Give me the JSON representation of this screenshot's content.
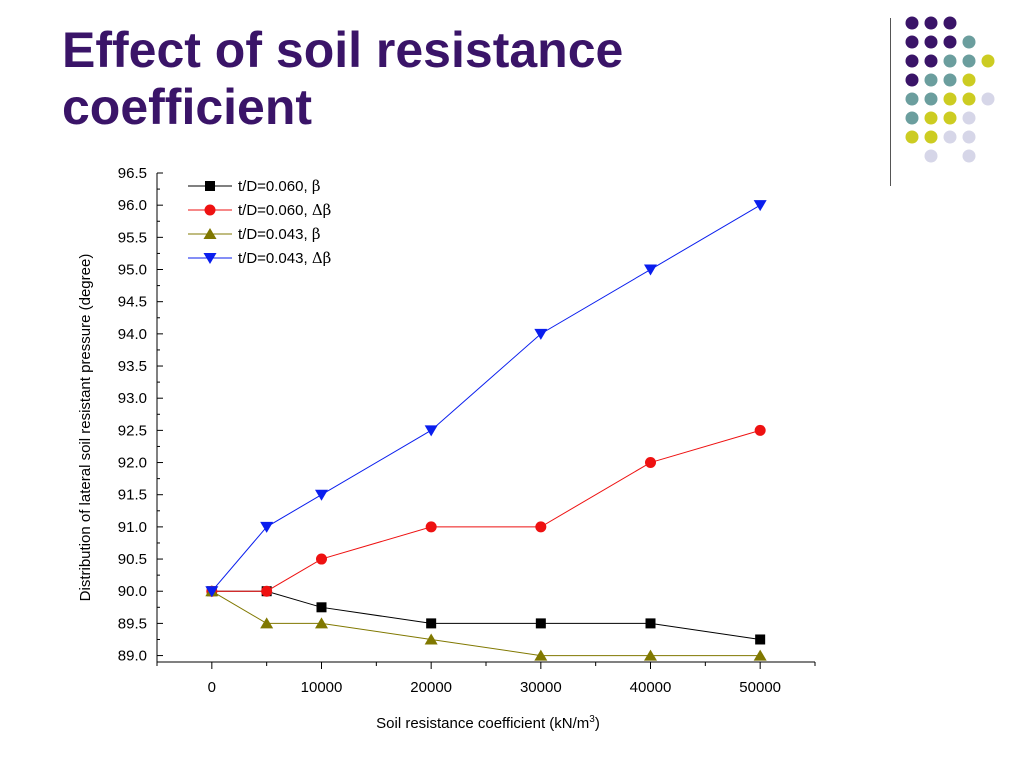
{
  "slide": {
    "title": "Effect of soil resistance coefficient"
  },
  "decoration": {
    "dot_colors": {
      "purple": "#3a1468",
      "teal": "#6b9e9e",
      "yellow": "#cccc22",
      "lavender": "#d6d6e8"
    },
    "dot_grid": [
      [
        "purple",
        "purple",
        "purple",
        null,
        null
      ],
      [
        "purple",
        "purple",
        "purple",
        "teal",
        null
      ],
      [
        "purple",
        "purple",
        "teal",
        "teal",
        "yellow"
      ],
      [
        "purple",
        "teal",
        "teal",
        "yellow",
        null
      ],
      [
        "teal",
        "teal",
        "yellow",
        "yellow",
        "lavender"
      ],
      [
        "teal",
        "yellow",
        "yellow",
        "lavender",
        null
      ],
      [
        "yellow",
        "yellow",
        "lavender",
        "lavender",
        null
      ],
      [
        null,
        "lavender",
        null,
        "lavender",
        null
      ]
    ]
  },
  "chart_data": {
    "type": "line",
    "xlabel": "Soil resistance coefficient (kN/m",
    "xlabel_sup": "3",
    "xlabel_end": ")",
    "ylabel": "Distribution of lateral soil resistant pressure (degree)",
    "xlim": [
      -5000,
      55000
    ],
    "ylim": [
      88.9,
      96.5
    ],
    "x_ticks": [
      0,
      10000,
      20000,
      30000,
      40000,
      50000
    ],
    "y_ticks": [
      89.0,
      89.5,
      90.0,
      90.5,
      91.0,
      91.5,
      92.0,
      92.5,
      93.0,
      93.5,
      94.0,
      94.5,
      95.0,
      95.5,
      96.0,
      96.5
    ],
    "x_tick_labels": [
      "0",
      "10000",
      "20000",
      "30000",
      "40000",
      "50000"
    ],
    "y_tick_labels": [
      "89.0",
      "89.5",
      "90.0",
      "90.5",
      "91.0",
      "91.5",
      "92.0",
      "92.5",
      "93.0",
      "93.5",
      "94.0",
      "94.5",
      "95.0",
      "95.5",
      "96.0",
      "96.5"
    ],
    "x": [
      0,
      5000,
      10000,
      20000,
      30000,
      40000,
      50000
    ],
    "legend_position": "top-left",
    "grid": false,
    "series": [
      {
        "name": "t/D=0.060, ",
        "greek": "β",
        "marker": "square",
        "color": "#000000",
        "values": [
          90.0,
          90.0,
          89.75,
          89.5,
          89.5,
          89.5,
          89.25
        ]
      },
      {
        "name": "t/D=0.060, ",
        "greek": "Δβ",
        "marker": "circle",
        "color": "#ee1111",
        "values": [
          90.0,
          90.0,
          90.5,
          91.0,
          91.0,
          92.0,
          92.5
        ]
      },
      {
        "name": "t/D=0.043, ",
        "greek": "β",
        "marker": "triangle-up",
        "color": "#807800",
        "values": [
          90.0,
          89.5,
          89.5,
          89.25,
          89.0,
          89.0,
          89.0
        ]
      },
      {
        "name": "t/D=0.043, ",
        "greek": "Δβ",
        "marker": "triangle-down",
        "color": "#0a1eee",
        "values": [
          90.0,
          91.0,
          91.5,
          92.5,
          94.0,
          95.0,
          96.0
        ]
      }
    ]
  }
}
